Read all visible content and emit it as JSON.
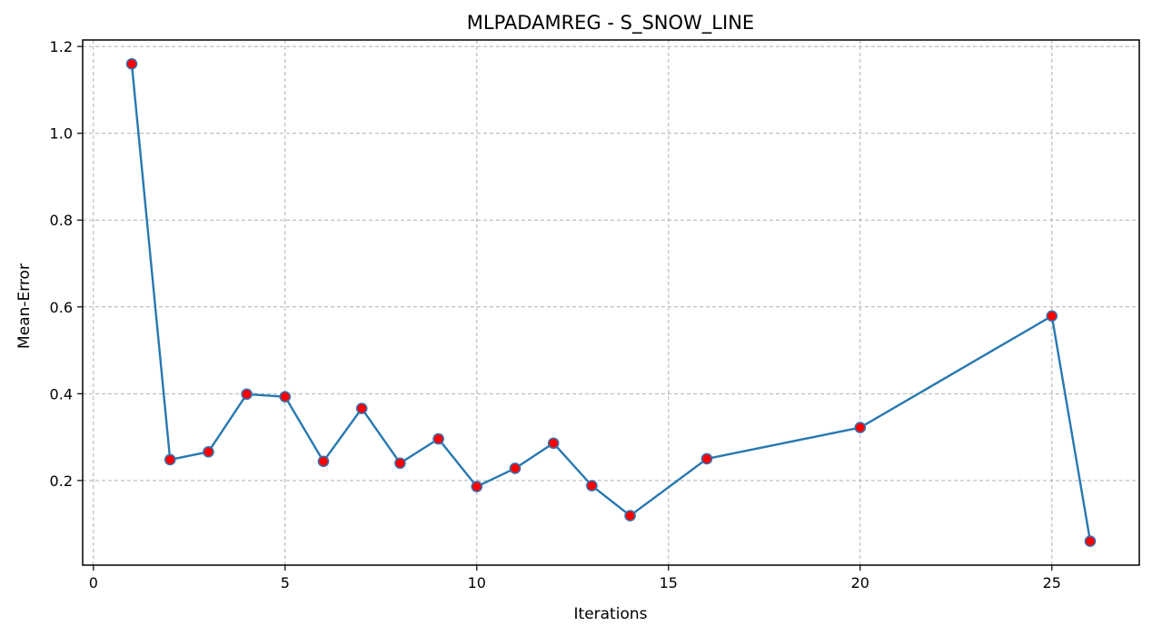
{
  "chart_data": {
    "type": "line",
    "title": "MLPADAMREG - S_SNOW_LINE",
    "xlabel": "Iterations",
    "ylabel": "Mean-Error",
    "x": [
      1,
      2,
      3,
      4,
      5,
      6,
      7,
      8,
      9,
      10,
      11,
      12,
      13,
      14,
      16,
      20,
      25,
      26
    ],
    "series": [
      {
        "values": [
          1.16,
          0.248,
          0.266,
          0.399,
          0.393,
          0.244,
          0.366,
          0.24,
          0.296,
          0.186,
          0.228,
          0.286,
          0.188,
          0.119,
          0.25,
          0.322,
          0.579,
          0.06
        ]
      }
    ],
    "xlim": [
      -0.28,
      27.28
    ],
    "ylim": [
      0.005,
      1.215
    ],
    "xticks": [
      0,
      5,
      10,
      15,
      20,
      25
    ],
    "yticks": [
      0.2,
      0.4,
      0.6,
      0.8,
      1.0,
      1.2
    ],
    "xtick_labels": [
      "0",
      "5",
      "10",
      "15",
      "20",
      "25"
    ],
    "ytick_labels": [
      "0.2",
      "0.4",
      "0.6",
      "0.8",
      "1.0",
      "1.2"
    ],
    "grid": true,
    "grid_style": "dashed",
    "line_color": "#2878b0",
    "marker_color": "#ff0000",
    "marker_edge_color": "#3b6ea8"
  }
}
